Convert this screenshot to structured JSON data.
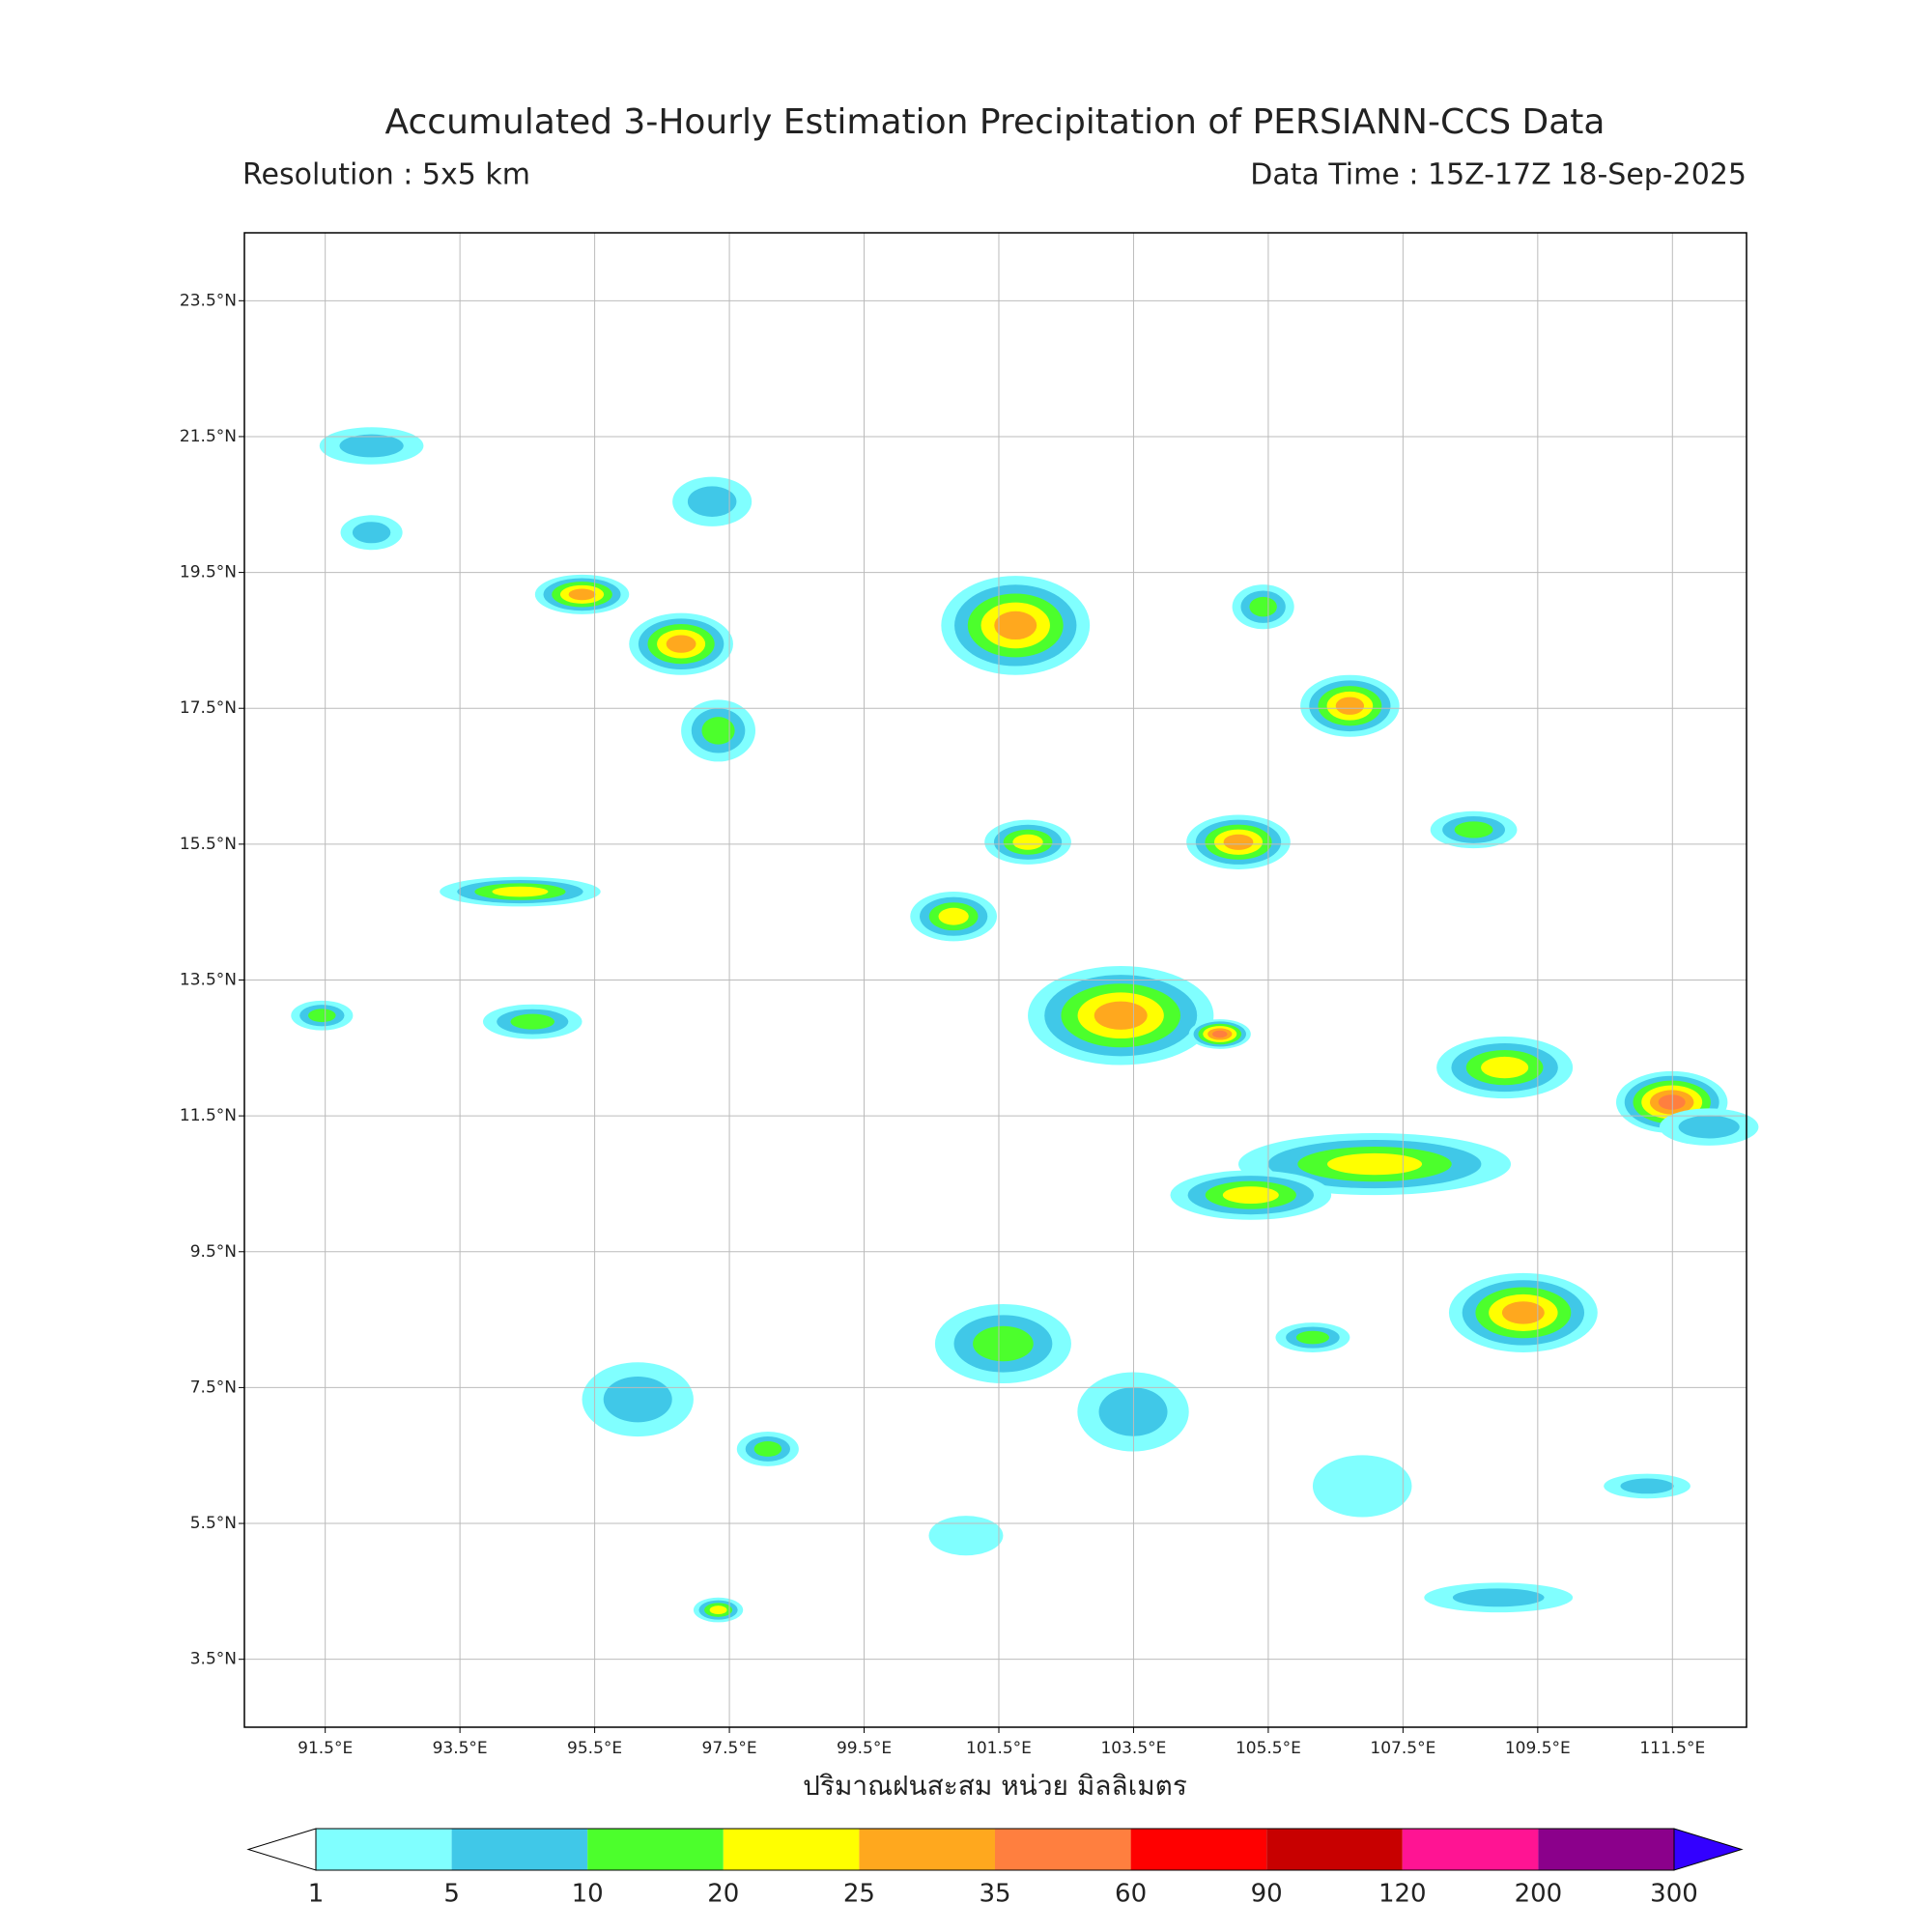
{
  "header": {
    "title": "Accumulated 3-Hourly Estimation Precipitation of PERSIANN-CCS Data",
    "resolution": "Resolution : 5x5 km",
    "data_time": "Data Time : 15Z-17Z 18-Sep-2025"
  },
  "map": {
    "xlim": [
      90.3,
      112.6
    ],
    "ylim": [
      2.5,
      24.5
    ],
    "xticks": [
      {
        "value": 91.5,
        "label": "91.5°E"
      },
      {
        "value": 93.5,
        "label": "93.5°E"
      },
      {
        "value": 95.5,
        "label": "95.5°E"
      },
      {
        "value": 97.5,
        "label": "97.5°E"
      },
      {
        "value": 99.5,
        "label": "99.5°E"
      },
      {
        "value": 101.5,
        "label": "101.5°E"
      },
      {
        "value": 103.5,
        "label": "103.5°E"
      },
      {
        "value": 105.5,
        "label": "105.5°E"
      },
      {
        "value": 107.5,
        "label": "107.5°E"
      },
      {
        "value": 109.5,
        "label": "109.5°E"
      },
      {
        "value": 111.5,
        "label": "111.5°E"
      }
    ],
    "yticks": [
      {
        "value": 23.5,
        "label": "23.5°N"
      },
      {
        "value": 21.5,
        "label": "21.5°N"
      },
      {
        "value": 19.5,
        "label": "19.5°N"
      },
      {
        "value": 17.5,
        "label": "17.5°N"
      },
      {
        "value": 15.5,
        "label": "15.5°N"
      },
      {
        "value": 13.5,
        "label": "13.5°N"
      },
      {
        "value": 11.5,
        "label": "11.5°N"
      },
      {
        "value": 9.5,
        "label": "9.5°N"
      },
      {
        "value": 7.5,
        "label": "7.5°N"
      },
      {
        "value": 5.5,
        "label": "5.5°N"
      },
      {
        "value": 3.5,
        "label": "3.5°N"
      }
    ],
    "grid": true,
    "x_label": "ปริมาณฝนสะสม หน่วย มิลลิเมตร"
  },
  "colorbar": {
    "levels": [
      1,
      5,
      10,
      20,
      25,
      35,
      60,
      90,
      120,
      200,
      300
    ],
    "colors": [
      "#80ffff",
      "#40c8e8",
      "#4cff2c",
      "#ffff00",
      "#ffa81e",
      "#ff7f3f",
      "#ff0000",
      "#c80000",
      "#ff1493",
      "#8b008b"
    ],
    "under_color": "#ffffff",
    "over_color": "#3300ff"
  }
}
